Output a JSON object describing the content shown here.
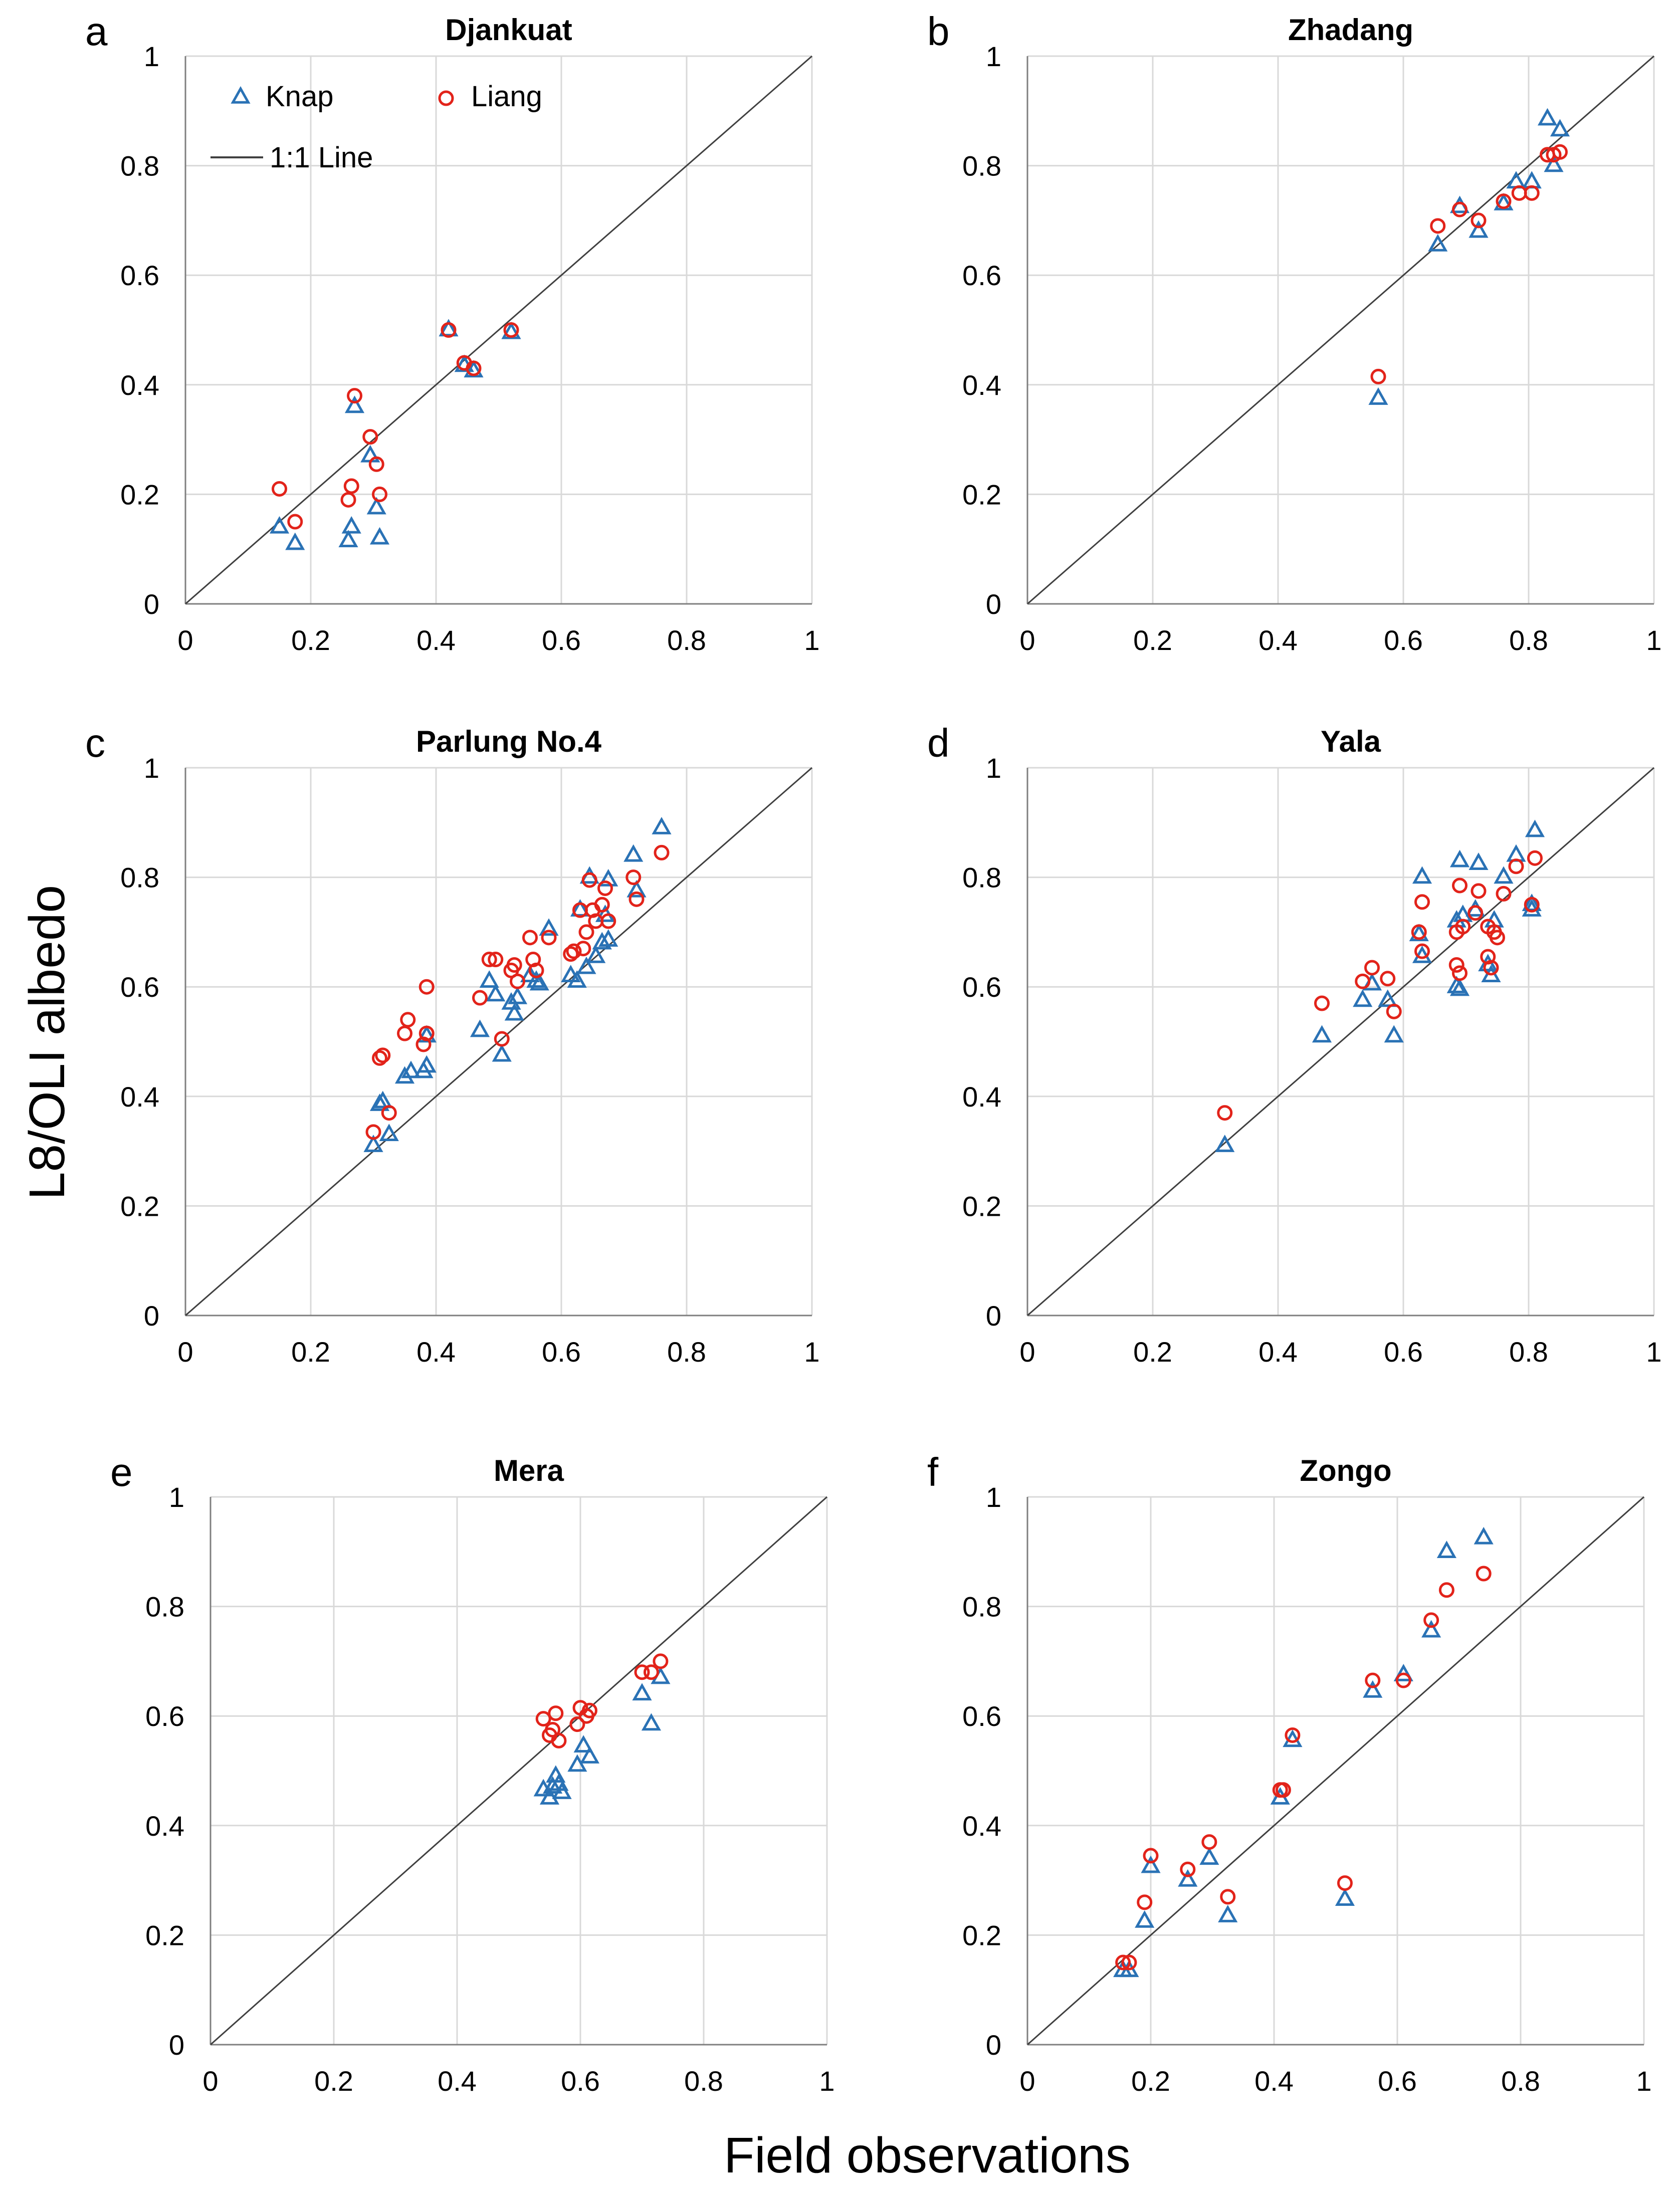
{
  "figure": {
    "ylabel": "L8/OLI albedo",
    "xlabel": "Field observations",
    "legend": {
      "knap": "Knap",
      "liang": "Liang",
      "line": "1:1 Line"
    },
    "colors": {
      "knap": "#2a72b5",
      "liang": "#e2231a",
      "line": "#404040",
      "grid": "#d9d9d9"
    }
  },
  "chart_data": [
    {
      "type": "scatter",
      "panel": "a",
      "title": "Djankuat",
      "xlim": [
        0,
        1
      ],
      "ylim": [
        0,
        1
      ],
      "xticks": [
        "0",
        "0.2",
        "0.4",
        "0.6",
        "0.8",
        "1"
      ],
      "yticks": [
        "0",
        "0.2",
        "0.4",
        "0.6",
        "0.8",
        "1"
      ],
      "grid": true,
      "legend": "top-left",
      "series": [
        {
          "name": "Knap",
          "marker": "triangle",
          "points": [
            [
              0.15,
              0.14
            ],
            [
              0.175,
              0.11
            ],
            [
              0.26,
              0.115
            ],
            [
              0.265,
              0.14
            ],
            [
              0.27,
              0.36
            ],
            [
              0.295,
              0.27
            ],
            [
              0.305,
              0.175
            ],
            [
              0.31,
              0.12
            ],
            [
              0.42,
              0.5
            ],
            [
              0.445,
              0.435
            ],
            [
              0.46,
              0.425
            ],
            [
              0.52,
              0.495
            ]
          ]
        },
        {
          "name": "Liang",
          "marker": "circle",
          "points": [
            [
              0.15,
              0.21
            ],
            [
              0.175,
              0.15
            ],
            [
              0.26,
              0.19
            ],
            [
              0.265,
              0.215
            ],
            [
              0.27,
              0.38
            ],
            [
              0.295,
              0.305
            ],
            [
              0.305,
              0.255
            ],
            [
              0.31,
              0.2
            ],
            [
              0.42,
              0.5
            ],
            [
              0.445,
              0.44
            ],
            [
              0.46,
              0.43
            ],
            [
              0.52,
              0.5
            ]
          ]
        }
      ]
    },
    {
      "type": "scatter",
      "panel": "b",
      "title": "Zhadang",
      "xlim": [
        0,
        1
      ],
      "ylim": [
        0,
        1
      ],
      "xticks": [
        "0",
        "0.2",
        "0.4",
        "0.6",
        "0.8",
        "1"
      ],
      "yticks": [
        "0",
        "0.2",
        "0.4",
        "0.6",
        "0.8",
        "1"
      ],
      "grid": true,
      "series": [
        {
          "name": "Knap",
          "marker": "triangle",
          "points": [
            [
              0.56,
              0.375
            ],
            [
              0.655,
              0.655
            ],
            [
              0.69,
              0.725
            ],
            [
              0.72,
              0.68
            ],
            [
              0.76,
              0.73
            ],
            [
              0.78,
              0.77
            ],
            [
              0.805,
              0.77
            ],
            [
              0.83,
              0.885
            ],
            [
              0.84,
              0.8
            ],
            [
              0.85,
              0.865
            ]
          ]
        },
        {
          "name": "Liang",
          "marker": "circle",
          "points": [
            [
              0.56,
              0.415
            ],
            [
              0.655,
              0.69
            ],
            [
              0.69,
              0.72
            ],
            [
              0.72,
              0.7
            ],
            [
              0.76,
              0.735
            ],
            [
              0.785,
              0.75
            ],
            [
              0.805,
              0.75
            ],
            [
              0.83,
              0.82
            ],
            [
              0.84,
              0.82
            ],
            [
              0.85,
              0.825
            ]
          ]
        }
      ]
    },
    {
      "type": "scatter",
      "panel": "c",
      "title": "Parlung No.4",
      "xlim": [
        0,
        1
      ],
      "ylim": [
        0,
        1
      ],
      "xticks": [
        "0",
        "0.2",
        "0.4",
        "0.6",
        "0.8",
        "1"
      ],
      "yticks": [
        "0",
        "0.2",
        "0.4",
        "0.6",
        "0.8",
        "1"
      ],
      "grid": true,
      "series": [
        {
          "name": "Knap",
          "marker": "triangle",
          "points": [
            [
              0.3,
              0.31
            ],
            [
              0.31,
              0.385
            ],
            [
              0.315,
              0.39
            ],
            [
              0.325,
              0.33
            ],
            [
              0.35,
              0.435
            ],
            [
              0.36,
              0.445
            ],
            [
              0.38,
              0.445
            ],
            [
              0.385,
              0.455
            ],
            [
              0.385,
              0.51
            ],
            [
              0.47,
              0.52
            ],
            [
              0.485,
              0.61
            ],
            [
              0.495,
              0.585
            ],
            [
              0.505,
              0.475
            ],
            [
              0.52,
              0.57
            ],
            [
              0.525,
              0.55
            ],
            [
              0.53,
              0.58
            ],
            [
              0.55,
              0.62
            ],
            [
              0.56,
              0.61
            ],
            [
              0.565,
              0.605
            ],
            [
              0.58,
              0.705
            ],
            [
              0.615,
              0.62
            ],
            [
              0.625,
              0.61
            ],
            [
              0.63,
              0.74
            ],
            [
              0.64,
              0.635
            ],
            [
              0.645,
              0.8
            ],
            [
              0.655,
              0.655
            ],
            [
              0.665,
              0.68
            ],
            [
              0.67,
              0.73
            ],
            [
              0.675,
              0.685
            ],
            [
              0.675,
              0.795
            ],
            [
              0.715,
              0.84
            ],
            [
              0.72,
              0.775
            ],
            [
              0.76,
              0.89
            ]
          ]
        },
        {
          "name": "Liang",
          "marker": "circle",
          "points": [
            [
              0.3,
              0.335
            ],
            [
              0.31,
              0.47
            ],
            [
              0.315,
              0.475
            ],
            [
              0.325,
              0.37
            ],
            [
              0.35,
              0.515
            ],
            [
              0.355,
              0.54
            ],
            [
              0.38,
              0.495
            ],
            [
              0.385,
              0.6
            ],
            [
              0.385,
              0.515
            ],
            [
              0.47,
              0.58
            ],
            [
              0.485,
              0.65
            ],
            [
              0.495,
              0.65
            ],
            [
              0.505,
              0.505
            ],
            [
              0.52,
              0.63
            ],
            [
              0.525,
              0.64
            ],
            [
              0.53,
              0.61
            ],
            [
              0.55,
              0.69
            ],
            [
              0.555,
              0.65
            ],
            [
              0.56,
              0.63
            ],
            [
              0.58,
              0.69
            ],
            [
              0.615,
              0.66
            ],
            [
              0.62,
              0.665
            ],
            [
              0.63,
              0.74
            ],
            [
              0.635,
              0.67
            ],
            [
              0.64,
              0.7
            ],
            [
              0.645,
              0.795
            ],
            [
              0.65,
              0.74
            ],
            [
              0.655,
              0.72
            ],
            [
              0.665,
              0.75
            ],
            [
              0.67,
              0.78
            ],
            [
              0.675,
              0.72
            ],
            [
              0.715,
              0.8
            ],
            [
              0.72,
              0.76
            ],
            [
              0.76,
              0.845
            ]
          ]
        }
      ]
    },
    {
      "type": "scatter",
      "panel": "d",
      "title": "Yala",
      "xlim": [
        0,
        1
      ],
      "ylim": [
        0,
        1
      ],
      "xticks": [
        "0",
        "0.2",
        "0.4",
        "0.6",
        "0.8",
        "1"
      ],
      "yticks": [
        "0",
        "0.2",
        "0.4",
        "0.6",
        "0.8",
        "1"
      ],
      "grid": true,
      "series": [
        {
          "name": "Knap",
          "marker": "triangle",
          "points": [
            [
              0.315,
              0.31
            ],
            [
              0.47,
              0.51
            ],
            [
              0.535,
              0.575
            ],
            [
              0.55,
              0.605
            ],
            [
              0.575,
              0.575
            ],
            [
              0.585,
              0.51
            ],
            [
              0.625,
              0.695
            ],
            [
              0.63,
              0.655
            ],
            [
              0.63,
              0.8
            ],
            [
              0.685,
              0.72
            ],
            [
              0.685,
              0.6
            ],
            [
              0.69,
              0.83
            ],
            [
              0.69,
              0.595
            ],
            [
              0.695,
              0.73
            ],
            [
              0.715,
              0.74
            ],
            [
              0.72,
              0.825
            ],
            [
              0.735,
              0.64
            ],
            [
              0.74,
              0.62
            ],
            [
              0.745,
              0.72
            ],
            [
              0.76,
              0.8
            ],
            [
              0.78,
              0.84
            ],
            [
              0.805,
              0.75
            ],
            [
              0.805,
              0.74
            ],
            [
              0.81,
              0.885
            ]
          ]
        },
        {
          "name": "Liang",
          "marker": "circle",
          "points": [
            [
              0.315,
              0.37
            ],
            [
              0.47,
              0.57
            ],
            [
              0.535,
              0.61
            ],
            [
              0.55,
              0.635
            ],
            [
              0.575,
              0.615
            ],
            [
              0.585,
              0.555
            ],
            [
              0.625,
              0.7
            ],
            [
              0.63,
              0.665
            ],
            [
              0.63,
              0.755
            ],
            [
              0.685,
              0.7
            ],
            [
              0.685,
              0.64
            ],
            [
              0.69,
              0.785
            ],
            [
              0.69,
              0.625
            ],
            [
              0.695,
              0.71
            ],
            [
              0.715,
              0.735
            ],
            [
              0.72,
              0.775
            ],
            [
              0.735,
              0.71
            ],
            [
              0.735,
              0.655
            ],
            [
              0.74,
              0.635
            ],
            [
              0.745,
              0.7
            ],
            [
              0.75,
              0.69
            ],
            [
              0.76,
              0.77
            ],
            [
              0.78,
              0.82
            ],
            [
              0.805,
              0.75
            ],
            [
              0.81,
              0.835
            ]
          ]
        }
      ]
    },
    {
      "type": "scatter",
      "panel": "e",
      "title": "Mera",
      "xlim": [
        0,
        1
      ],
      "ylim": [
        0,
        1
      ],
      "xticks": [
        "0",
        "0.2",
        "0.4",
        "0.6",
        "0.8",
        "1"
      ],
      "yticks": [
        "0",
        "0.2",
        "0.4",
        "0.6",
        "0.8",
        "1"
      ],
      "grid": true,
      "series": [
        {
          "name": "Knap",
          "marker": "triangle",
          "points": [
            [
              0.54,
              0.465
            ],
            [
              0.55,
              0.45
            ],
            [
              0.555,
              0.47
            ],
            [
              0.56,
              0.49
            ],
            [
              0.565,
              0.475
            ],
            [
              0.57,
              0.46
            ],
            [
              0.595,
              0.51
            ],
            [
              0.605,
              0.545
            ],
            [
              0.615,
              0.525
            ],
            [
              0.7,
              0.64
            ],
            [
              0.715,
              0.585
            ],
            [
              0.73,
              0.67
            ]
          ]
        },
        {
          "name": "Liang",
          "marker": "circle",
          "points": [
            [
              0.54,
              0.595
            ],
            [
              0.55,
              0.565
            ],
            [
              0.555,
              0.575
            ],
            [
              0.56,
              0.605
            ],
            [
              0.565,
              0.555
            ],
            [
              0.595,
              0.585
            ],
            [
              0.6,
              0.615
            ],
            [
              0.61,
              0.6
            ],
            [
              0.615,
              0.61
            ],
            [
              0.7,
              0.68
            ],
            [
              0.715,
              0.68
            ],
            [
              0.73,
              0.7
            ]
          ]
        }
      ]
    },
    {
      "type": "scatter",
      "panel": "f",
      "title": "Zongo",
      "xlim": [
        0,
        1
      ],
      "ylim": [
        0,
        1
      ],
      "xticks": [
        "0",
        "0.2",
        "0.4",
        "0.6",
        "0.8",
        "1"
      ],
      "yticks": [
        "0",
        "0.2",
        "0.4",
        "0.6",
        "0.8",
        "1"
      ],
      "grid": true,
      "series": [
        {
          "name": "Knap",
          "marker": "triangle",
          "points": [
            [
              0.155,
              0.135
            ],
            [
              0.165,
              0.135
            ],
            [
              0.19,
              0.225
            ],
            [
              0.2,
              0.325
            ],
            [
              0.26,
              0.3
            ],
            [
              0.295,
              0.34
            ],
            [
              0.325,
              0.235
            ],
            [
              0.41,
              0.45
            ],
            [
              0.43,
              0.555
            ],
            [
              0.515,
              0.265
            ],
            [
              0.56,
              0.645
            ],
            [
              0.61,
              0.675
            ],
            [
              0.655,
              0.755
            ],
            [
              0.68,
              0.9
            ],
            [
              0.74,
              0.925
            ]
          ]
        },
        {
          "name": "Liang",
          "marker": "circle",
          "points": [
            [
              0.155,
              0.15
            ],
            [
              0.165,
              0.15
            ],
            [
              0.19,
              0.26
            ],
            [
              0.2,
              0.345
            ],
            [
              0.26,
              0.32
            ],
            [
              0.295,
              0.37
            ],
            [
              0.325,
              0.27
            ],
            [
              0.41,
              0.465
            ],
            [
              0.415,
              0.465
            ],
            [
              0.43,
              0.565
            ],
            [
              0.515,
              0.295
            ],
            [
              0.56,
              0.665
            ],
            [
              0.61,
              0.665
            ],
            [
              0.655,
              0.775
            ],
            [
              0.68,
              0.83
            ],
            [
              0.74,
              0.86
            ]
          ]
        }
      ]
    }
  ]
}
